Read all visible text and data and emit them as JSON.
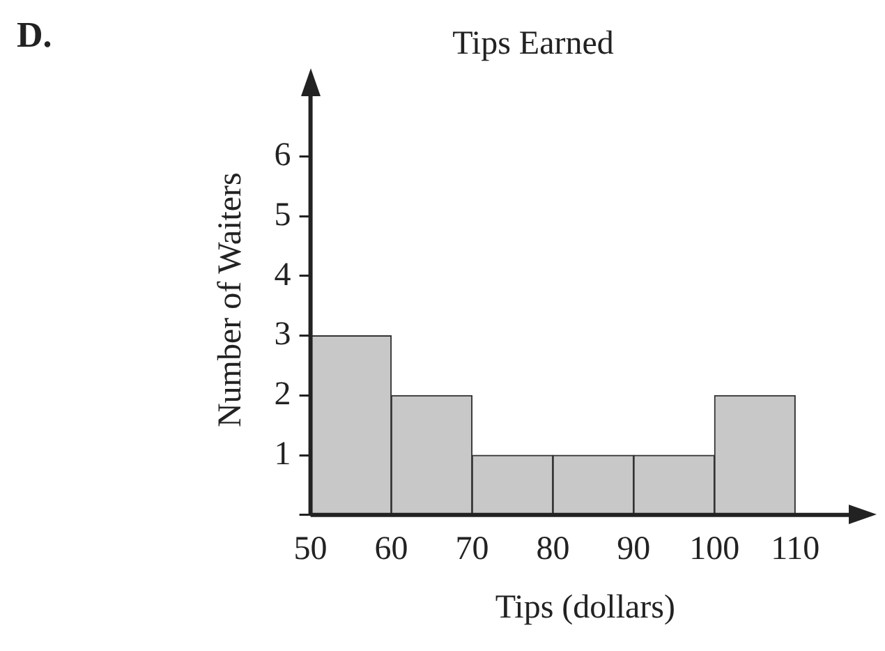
{
  "chart_data": {
    "type": "histogram",
    "title": "Tips Earned",
    "xlabel": "Tips (dollars)",
    "ylabel": "Number of Waiters",
    "annotations": [
      "D."
    ],
    "bins": [
      50,
      60,
      70,
      80,
      90,
      100,
      110
    ],
    "values": [
      3,
      2,
      1,
      1,
      1,
      2
    ],
    "color": "#c8c8c8",
    "xlim": [
      50,
      118
    ],
    "xticks": [
      50,
      60,
      70,
      80,
      90,
      100,
      110
    ],
    "ylim": [
      0,
      7.2
    ],
    "yticks": [
      {
        "value": 0,
        "label": null
      },
      1,
      2,
      3,
      4,
      5,
      6
    ]
  }
}
